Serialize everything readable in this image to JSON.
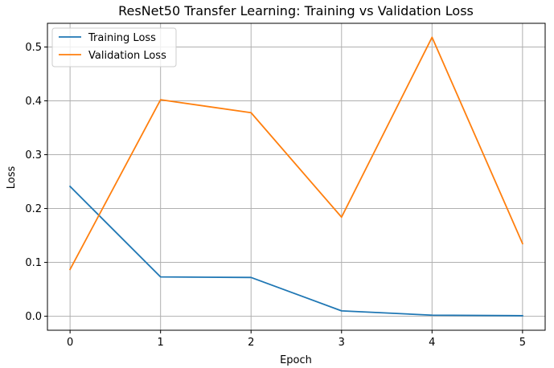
{
  "chart_data": {
    "type": "line",
    "title": "ResNet50 Transfer Learning: Training vs Validation Loss",
    "xlabel": "Epoch",
    "ylabel": "Loss",
    "x": [
      0,
      1,
      2,
      3,
      4,
      5
    ],
    "xlim": [
      -0.25,
      5.25
    ],
    "ylim": [
      -0.026,
      0.544
    ],
    "xticks": [
      0,
      1,
      2,
      3,
      4,
      5
    ],
    "yticks": [
      0.0,
      0.1,
      0.2,
      0.3,
      0.4,
      0.5
    ],
    "xtick_labels": [
      "0",
      "1",
      "2",
      "3",
      "4",
      "5"
    ],
    "ytick_labels": [
      "0.0",
      "0.1",
      "0.2",
      "0.3",
      "0.4",
      "0.5"
    ],
    "grid": true,
    "legend_position": "top-left",
    "series": [
      {
        "name": "Training Loss",
        "color": "#1f77b4",
        "values": [
          0.241,
          0.073,
          0.072,
          0.01,
          0.002,
          0.001
        ]
      },
      {
        "name": "Validation Loss",
        "color": "#ff7f0e",
        "values": [
          0.087,
          0.402,
          0.378,
          0.184,
          0.518,
          0.135
        ]
      }
    ]
  }
}
